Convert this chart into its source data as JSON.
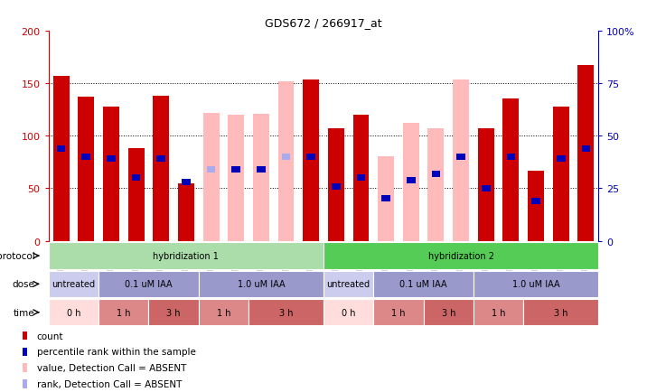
{
  "title": "GDS672 / 266917_at",
  "samples": [
    "GSM18228",
    "GSM18230",
    "GSM18232",
    "GSM18290",
    "GSM18292",
    "GSM18294",
    "GSM18296",
    "GSM18298",
    "GSM18300",
    "GSM18302",
    "GSM18304",
    "GSM18229",
    "GSM18231",
    "GSM18233",
    "GSM18291",
    "GSM18293",
    "GSM18295",
    "GSM18297",
    "GSM18299",
    "GSM18301",
    "GSM18303",
    "GSM18305"
  ],
  "count_values": [
    157,
    137,
    128,
    88,
    138,
    55,
    122,
    120,
    121,
    152,
    153,
    107,
    120,
    80,
    112,
    107,
    153,
    107,
    135,
    67,
    128,
    167
  ],
  "percentile_values": [
    44,
    40,
    39,
    30,
    39,
    28,
    34,
    34,
    34,
    40,
    40,
    26,
    30,
    20,
    29,
    32,
    40,
    25,
    40,
    19,
    39,
    44
  ],
  "absent_count": [
    false,
    false,
    false,
    false,
    false,
    false,
    true,
    true,
    true,
    true,
    false,
    false,
    false,
    true,
    true,
    true,
    true,
    false,
    false,
    false,
    false,
    false
  ],
  "absent_rank": [
    false,
    false,
    false,
    false,
    false,
    false,
    true,
    false,
    false,
    true,
    false,
    false,
    false,
    false,
    false,
    false,
    false,
    false,
    false,
    false,
    false,
    false
  ],
  "count_color": "#cc0000",
  "percentile_color": "#0000bb",
  "absent_count_color": "#ffbbbb",
  "absent_rank_color": "#aaaaee",
  "ylim_left": [
    0,
    200
  ],
  "ylim_right": [
    0,
    100
  ],
  "yticks_left": [
    0,
    50,
    100,
    150,
    200
  ],
  "yticks_right": [
    0,
    25,
    50,
    75,
    100
  ],
  "ytick_labels_left": [
    "0",
    "50",
    "100",
    "150",
    "200"
  ],
  "ytick_labels_right": [
    "0",
    "25",
    "50",
    "75",
    "100%"
  ],
  "grid_values": [
    50,
    100,
    150
  ],
  "protocol_color1": "#aaddaa",
  "protocol_color2": "#55cc55",
  "protocol_segments": [
    {
      "label": "hybridization 1",
      "start": 0,
      "end": 10
    },
    {
      "label": "hybridization 2",
      "start": 11,
      "end": 21
    }
  ],
  "dose_segments": [
    {
      "label": "untreated",
      "start": 0,
      "end": 1,
      "color": "#ccccee"
    },
    {
      "label": "0.1 uM IAA",
      "start": 2,
      "end": 5,
      "color": "#9999cc"
    },
    {
      "label": "1.0 uM IAA",
      "start": 6,
      "end": 10,
      "color": "#9999cc"
    },
    {
      "label": "untreated",
      "start": 11,
      "end": 12,
      "color": "#ccccee"
    },
    {
      "label": "0.1 uM IAA",
      "start": 13,
      "end": 16,
      "color": "#9999cc"
    },
    {
      "label": "1.0 uM IAA",
      "start": 17,
      "end": 21,
      "color": "#9999cc"
    }
  ],
  "time_segments": [
    {
      "label": "0 h",
      "start": 0,
      "end": 1,
      "color": "#ffdddd"
    },
    {
      "label": "1 h",
      "start": 2,
      "end": 3,
      "color": "#dd8888"
    },
    {
      "label": "3 h",
      "start": 4,
      "end": 5,
      "color": "#cc6666"
    },
    {
      "label": "1 h",
      "start": 6,
      "end": 7,
      "color": "#dd8888"
    },
    {
      "label": "3 h",
      "start": 8,
      "end": 10,
      "color": "#cc6666"
    },
    {
      "label": "0 h",
      "start": 11,
      "end": 12,
      "color": "#ffdddd"
    },
    {
      "label": "1 h",
      "start": 13,
      "end": 14,
      "color": "#dd8888"
    },
    {
      "label": "3 h",
      "start": 15,
      "end": 16,
      "color": "#cc6666"
    },
    {
      "label": "1 h",
      "start": 17,
      "end": 18,
      "color": "#dd8888"
    },
    {
      "label": "3 h",
      "start": 19,
      "end": 21,
      "color": "#cc6666"
    }
  ],
  "legend_items": [
    {
      "label": "count",
      "color": "#cc0000"
    },
    {
      "label": "percentile rank within the sample",
      "color": "#0000bb"
    },
    {
      "label": "value, Detection Call = ABSENT",
      "color": "#ffbbbb"
    },
    {
      "label": "rank, Detection Call = ABSENT",
      "color": "#aaaaee"
    }
  ]
}
